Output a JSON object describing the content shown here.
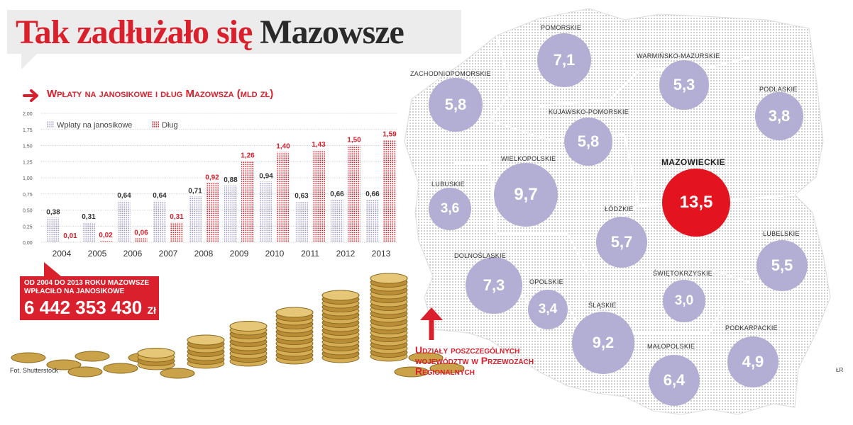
{
  "header": {
    "title_red": "Tak zadłużało się",
    "title_dark": "Mazowsze"
  },
  "chart_data": [
    {
      "type": "bar",
      "title": "Wpłaty na janosikowe i dług Mazowsza (mld zł)",
      "categories": [
        "2004",
        "2005",
        "2006",
        "2007",
        "2008",
        "2009",
        "2010",
        "2011",
        "2012",
        "2013"
      ],
      "series": [
        {
          "name": "Wpłaty na janosikowe",
          "values": [
            0.38,
            0.31,
            0.64,
            0.64,
            0.71,
            0.88,
            0.94,
            0.63,
            0.66,
            0.66
          ],
          "labels": [
            "0,38",
            "0,31",
            "0,64",
            "0,64",
            "0,71",
            "0,88",
            "0,94",
            "0,63",
            "0,66",
            "0,66"
          ]
        },
        {
          "name": "Dług",
          "values": [
            0.01,
            0.02,
            0.06,
            0.31,
            0.92,
            1.26,
            1.4,
            1.43,
            1.5,
            1.59
          ],
          "labels": [
            "0,01",
            "0,02",
            "0,06",
            "0,31",
            "0,92",
            "1,26",
            "1,40",
            "1,43",
            "1,50",
            "1,59"
          ]
        }
      ],
      "ylim": [
        0,
        2.0
      ],
      "yticks": [
        0,
        0.25,
        0.5,
        0.75,
        1.0,
        1.25,
        1.5,
        1.75,
        2.0
      ],
      "ytick_labels": [
        "0,00",
        "0,25",
        "0,50",
        "0,75",
        "1,00",
        "1,25",
        "1,50",
        "1,75",
        "2,00"
      ],
      "legend_placement": "top-left",
      "grid": true,
      "colors": {
        "wplaty": "#a9a3c8",
        "dlug": "#d9202c"
      }
    },
    {
      "type": "bubble-map",
      "title": "Udziały poszczególnych województw w Przewozach Regionalnych",
      "regions": [
        {
          "name": "POMORSKIE",
          "value": "7,1"
        },
        {
          "name": "WARMIŃSKO-MAZURSKIE",
          "value": "5,3"
        },
        {
          "name": "ZACHODNIOPOMORSKIE",
          "value": "5,8"
        },
        {
          "name": "PODLASKIE",
          "value": "3,8"
        },
        {
          "name": "KUJAWSKO-POMORSKIE",
          "value": "5,8"
        },
        {
          "name": "MAZOWIECKIE",
          "value": "13,5",
          "highlight": true
        },
        {
          "name": "WIELKOPOLSKIE",
          "value": "9,7"
        },
        {
          "name": "LUBUSKIE",
          "value": "3,6"
        },
        {
          "name": "ŁÓDZKIE",
          "value": "5,7"
        },
        {
          "name": "LUBELSKIE",
          "value": "5,5"
        },
        {
          "name": "DOLNOŚLĄSKIE",
          "value": "7,3"
        },
        {
          "name": "OPOLSKIE",
          "value": "3,4"
        },
        {
          "name": "ŚWIĘTOKRZYSKIE",
          "value": "3,0"
        },
        {
          "name": "ŚLĄSKIE",
          "value": "9,2"
        },
        {
          "name": "PODKARPACKIE",
          "value": "4,9"
        },
        {
          "name": "MAŁOPOLSKIE",
          "value": "6,4"
        }
      ],
      "colors": {
        "bubble": "#b3aed3",
        "highlight": "#e3141f"
      }
    }
  ],
  "callout": {
    "line1": "OD 2004 DO 2013 ROKU MAZOWSZE",
    "line2": "WPŁACIŁO NA JANOSIKOWE",
    "value": "6 442 353 430",
    "unit": "Zł"
  },
  "caption": {
    "line1": "Udziały poszczególnych",
    "line2": "województw w Przewozach",
    "line3": "Regionalnych"
  },
  "credit": "Fot. Shutterstock",
  "credit_right": "ŁR"
}
